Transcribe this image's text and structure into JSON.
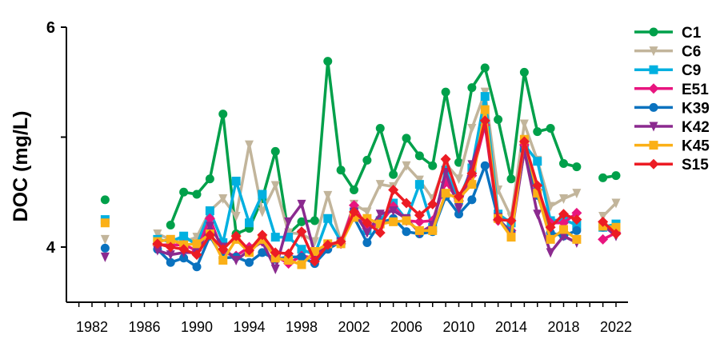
{
  "chart_data": {
    "type": "line",
    "title": "",
    "xlabel": "",
    "ylabel": "DOC (mg/L)",
    "xlim": [
      1980,
      2023
    ],
    "ylim": [
      3.5,
      6
    ],
    "yticks": [
      4,
      5,
      6
    ],
    "ytick_labels": [
      "4",
      "",
      "6"
    ],
    "xticks": [
      1982,
      1986,
      1990,
      1994,
      1998,
      2002,
      2006,
      2010,
      2014,
      2018,
      2022
    ],
    "grid": false,
    "legend_position": "right",
    "x": [
      1983,
      1987,
      1988,
      1989,
      1990,
      1991,
      1992,
      1993,
      1994,
      1995,
      1996,
      1997,
      1998,
      1999,
      2000,
      2001,
      2002,
      2003,
      2004,
      2005,
      2006,
      2007,
      2008,
      2009,
      2010,
      2011,
      2012,
      2013,
      2014,
      2015,
      2016,
      2017,
      2018,
      2019,
      2021,
      2022
    ],
    "series": [
      {
        "name": "C1",
        "color": "#00a04a",
        "marker": "circle",
        "values": [
          4.43,
          null,
          4.2,
          4.5,
          4.48,
          4.62,
          5.21,
          4.12,
          4.17,
          4.44,
          4.87,
          4.12,
          4.23,
          4.24,
          5.69,
          4.7,
          4.52,
          4.79,
          5.08,
          4.66,
          4.99,
          4.83,
          4.74,
          5.41,
          4.77,
          5.45,
          5.63,
          5.16,
          4.62,
          5.59,
          5.05,
          5.08,
          4.76,
          4.73,
          4.63,
          4.65
        ]
      },
      {
        "name": "C6",
        "color": "#c2b59b",
        "marker": "triangle-down",
        "values": [
          4.07,
          4.12,
          4.07,
          4.05,
          4.09,
          4.33,
          4.44,
          4.28,
          4.93,
          4.32,
          4.56,
          4.13,
          4.12,
          4.05,
          4.47,
          4.05,
          4.39,
          4.32,
          4.57,
          4.55,
          4.74,
          4.61,
          4.44,
          4.76,
          4.62,
          5.08,
          5.41,
          4.52,
          4.27,
          5.12,
          4.79,
          4.37,
          4.44,
          4.49,
          4.28,
          4.4
        ]
      },
      {
        "name": "C9",
        "color": "#00b0e0",
        "marker": "square",
        "values": [
          4.25,
          4.07,
          4.05,
          4.1,
          4.02,
          4.33,
          4.04,
          4.6,
          4.22,
          4.48,
          4.09,
          4.09,
          3.98,
          3.93,
          4.26,
          4.05,
          4.32,
          4.15,
          4.24,
          4.4,
          4.25,
          4.57,
          4.18,
          4.7,
          4.43,
          4.72,
          5.37,
          4.3,
          4.22,
          4.93,
          4.78,
          4.24,
          4.25,
          4.2,
          4.18,
          4.21
        ]
      },
      {
        "name": "E51",
        "color": "#e8157f",
        "marker": "diamond",
        "values": [
          null,
          4.02,
          4.02,
          4.02,
          3.97,
          4.26,
          3.95,
          3.92,
          4.0,
          4.05,
          3.92,
          3.85,
          3.92,
          3.9,
          4.02,
          4.03,
          4.38,
          4.17,
          4.21,
          4.37,
          4.24,
          4.23,
          4.24,
          4.59,
          4.42,
          4.65,
          5.11,
          4.24,
          4.15,
          4.93,
          4.52,
          4.22,
          4.22,
          4.31,
          4.07,
          4.13
        ]
      },
      {
        "name": "K39",
        "color": "#0a72bf",
        "marker": "circle",
        "values": [
          3.99,
          3.98,
          3.86,
          3.9,
          3.82,
          4.1,
          3.9,
          3.91,
          3.86,
          3.95,
          3.89,
          3.91,
          3.91,
          3.85,
          3.98,
          4.05,
          4.27,
          4.04,
          4.22,
          4.26,
          4.14,
          4.12,
          4.14,
          4.46,
          4.3,
          4.43,
          4.74,
          4.26,
          4.13,
          4.88,
          4.47,
          4.13,
          4.1,
          4.15,
          4.18,
          4.17
        ]
      },
      {
        "name": "K42",
        "color": "#8b2a8f",
        "marker": "triangle-down",
        "values": [
          3.91,
          3.97,
          3.93,
          3.95,
          3.95,
          4.19,
          4.0,
          3.88,
          3.97,
          4.05,
          3.8,
          4.23,
          4.39,
          3.94,
          4.02,
          4.05,
          4.32,
          4.13,
          4.3,
          4.33,
          4.26,
          4.13,
          4.2,
          4.68,
          4.35,
          4.75,
          5.12,
          4.27,
          4.1,
          4.88,
          4.3,
          3.95,
          4.1,
          4.04,
          4.2,
          4.1
        ]
      },
      {
        "name": "K45",
        "color": "#fbb017",
        "marker": "square",
        "values": [
          4.22,
          4.05,
          4.07,
          4.02,
          4.03,
          4.12,
          3.88,
          4.07,
          3.95,
          4.07,
          3.9,
          3.88,
          3.84,
          3.96,
          4.03,
          4.03,
          4.27,
          4.26,
          4.21,
          4.23,
          4.24,
          4.15,
          4.15,
          4.49,
          4.44,
          4.57,
          5.25,
          4.26,
          4.09,
          4.98,
          4.49,
          4.07,
          4.16,
          4.07,
          4.19,
          4.18
        ]
      },
      {
        "name": "S15",
        "color": "#ec1c24",
        "marker": "diamond",
        "values": [
          null,
          4.03,
          4.0,
          3.98,
          3.93,
          4.11,
          3.98,
          4.1,
          3.97,
          4.11,
          3.95,
          3.94,
          4.14,
          3.87,
          4.02,
          4.05,
          4.32,
          4.22,
          4.13,
          4.52,
          4.4,
          4.29,
          4.39,
          4.8,
          4.46,
          4.67,
          5.15,
          4.25,
          4.24,
          4.96,
          4.56,
          4.18,
          4.3,
          4.25,
          4.23,
          4.12
        ]
      }
    ]
  }
}
